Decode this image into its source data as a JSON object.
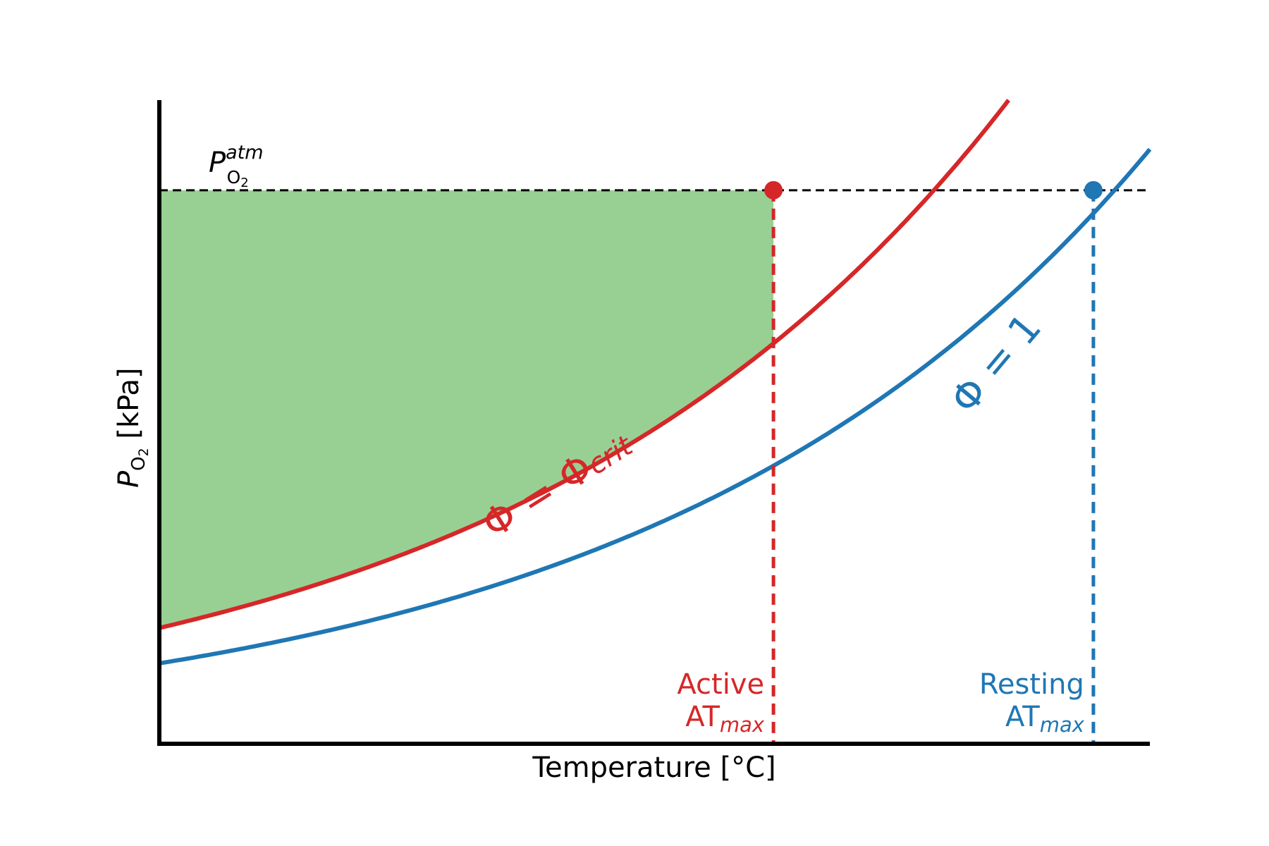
{
  "chart_data": {
    "type": "line",
    "title": "",
    "xlabel": "Temperature [°C]",
    "ylabel": {
      "symbol": "P",
      "subscript_main": "O",
      "subscript_num": "2",
      "unit": " [kPa]"
    },
    "xlim": [
      0,
      10
    ],
    "ylim": [
      0,
      10
    ],
    "grid": false,
    "legend": "none",
    "atm_label": {
      "symbol": "P",
      "superscript": "atm",
      "subscript_main": "O",
      "subscript_num": "2"
    },
    "atm_level": 8.6,
    "series": [
      {
        "key": "active",
        "label_main": "Φ = Φ",
        "label_sub": "crit",
        "color": "#d62728",
        "a": 1.8,
        "k": 0.2,
        "at_max": {
          "line1": "Active",
          "line2": "AT",
          "sub": "max",
          "x": 6.2
        }
      },
      {
        "key": "resting",
        "label_main": "Φ = 1",
        "label_sub": "",
        "color": "#1f77b4",
        "a": 1.25,
        "k": 0.2,
        "at_max": {
          "line1": "Resting",
          "line2": "AT",
          "sub": "max",
          "x": 9.43
        }
      }
    ],
    "fill_color": "#98d094",
    "refline_color": "#000000"
  }
}
